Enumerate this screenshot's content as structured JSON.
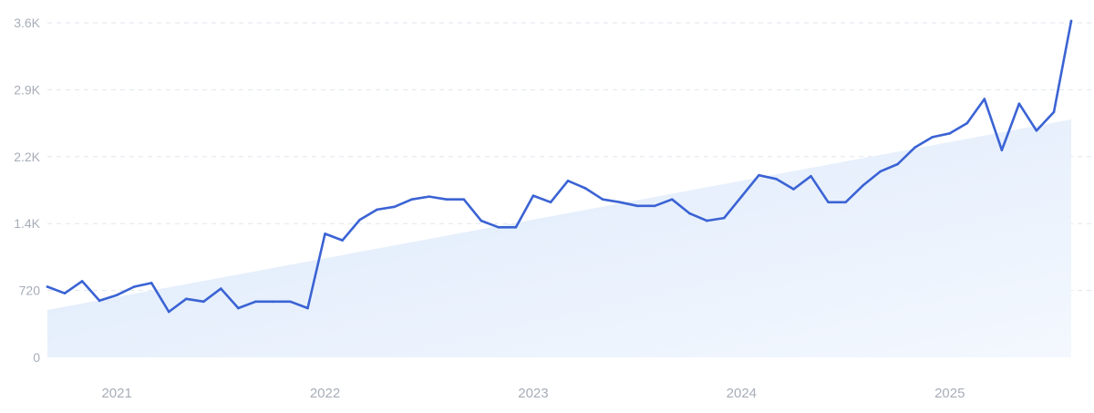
{
  "chart_data": {
    "type": "line",
    "title": "",
    "xlabel": "",
    "ylabel": "",
    "grid": true,
    "ylim": [
      0,
      3600
    ],
    "y_ticks": [
      {
        "value": 0,
        "label": "0"
      },
      {
        "value": 720,
        "label": "720"
      },
      {
        "value": 1440,
        "label": "1.4K"
      },
      {
        "value": 2160,
        "label": "2.2K"
      },
      {
        "value": 2880,
        "label": "2.9K"
      },
      {
        "value": 3600,
        "label": "3.6K"
      }
    ],
    "x_ticks": [
      {
        "value": "2021-01",
        "label": "2021"
      },
      {
        "value": "2022-01",
        "label": "2022"
      },
      {
        "value": "2023-01",
        "label": "2023"
      },
      {
        "value": "2024-01",
        "label": "2024"
      },
      {
        "value": "2025-01",
        "label": "2025"
      }
    ],
    "xlim": [
      "2020-09",
      "2025-08"
    ],
    "series": [
      {
        "color": "#3b63d4",
        "x": [
          "2020-09",
          "2020-10",
          "2020-11",
          "2020-12",
          "2021-01",
          "2021-02",
          "2021-03",
          "2021-04",
          "2021-05",
          "2021-06",
          "2021-07",
          "2021-08",
          "2021-09",
          "2021-10",
          "2021-11",
          "2021-12",
          "2022-01",
          "2022-02",
          "2022-03",
          "2022-04",
          "2022-05",
          "2022-06",
          "2022-07",
          "2022-08",
          "2022-09",
          "2022-10",
          "2022-11",
          "2022-12",
          "2023-01",
          "2023-02",
          "2023-03",
          "2023-04",
          "2023-05",
          "2023-06",
          "2023-07",
          "2023-08",
          "2023-09",
          "2023-10",
          "2023-11",
          "2023-12",
          "2024-01",
          "2024-02",
          "2024-03",
          "2024-04",
          "2024-05",
          "2024-06",
          "2024-07",
          "2024-08",
          "2024-09",
          "2024-10",
          "2024-11",
          "2024-12",
          "2025-01",
          "2025-02",
          "2025-03",
          "2025-04",
          "2025-05",
          "2025-06",
          "2025-07",
          "2025-08"
        ],
        "values": [
          760,
          690,
          820,
          610,
          670,
          760,
          800,
          490,
          630,
          600,
          740,
          530,
          600,
          600,
          600,
          530,
          1330,
          1260,
          1480,
          1590,
          1620,
          1700,
          1730,
          1700,
          1700,
          1470,
          1400,
          1400,
          1740,
          1670,
          1900,
          1820,
          1700,
          1670,
          1630,
          1630,
          1700,
          1550,
          1470,
          1500,
          1730,
          1960,
          1920,
          1810,
          1950,
          1670,
          1670,
          1850,
          2000,
          2080,
          2260,
          2370,
          2410,
          2520,
          2780,
          2230,
          2730,
          2440,
          2640,
          3620
        ]
      },
      {
        "type": "area",
        "color": "#e3eefc",
        "x": [
          "2020-09",
          "2025-08"
        ],
        "values": [
          510,
          2560
        ]
      }
    ]
  }
}
